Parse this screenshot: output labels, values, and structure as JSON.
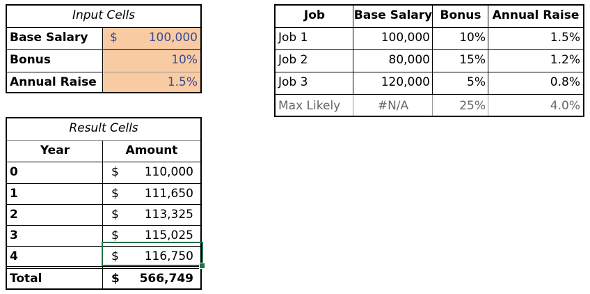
{
  "input_table": {
    "title": "Input Cells",
    "rows": [
      {
        "label": "Base Salary",
        "currency": "$",
        "value": "100,000"
      },
      {
        "label": "Bonus",
        "currency": "",
        "value": "10%"
      },
      {
        "label": "Annual Raise",
        "currency": "",
        "value": "1.5%"
      }
    ]
  },
  "job_table": {
    "headers": [
      "Job",
      "Base Salary",
      "Bonus",
      "Annual Raise"
    ],
    "rows": [
      [
        "Job 1",
        "100,000",
        "10%",
        "1.5%"
      ],
      [
        "Job 2",
        "80,000",
        "15%",
        "1.2%"
      ],
      [
        "Job 3",
        "120,000",
        "5%",
        "0.8%"
      ],
      [
        "Max Likely",
        "#N/A",
        "25%",
        "4.0%"
      ]
    ]
  },
  "result_table": {
    "title": "Result Cells",
    "headers": [
      "Year",
      "Amount"
    ],
    "rows": [
      {
        "year": "0",
        "currency": "$",
        "amount": "110,000"
      },
      {
        "year": "1",
        "currency": "$",
        "amount": "111,650"
      },
      {
        "year": "2",
        "currency": "$",
        "amount": "113,325"
      },
      {
        "year": "3",
        "currency": "$",
        "amount": "115,025"
      },
      {
        "year": "4",
        "currency": "$",
        "amount": "116,750"
      }
    ],
    "total": {
      "label": "Total",
      "currency": "$",
      "amount": "566,749"
    }
  },
  "colors": {
    "input_fill": "#f8cba3",
    "input_text": "#3b4a9a",
    "selection": "#217346"
  }
}
